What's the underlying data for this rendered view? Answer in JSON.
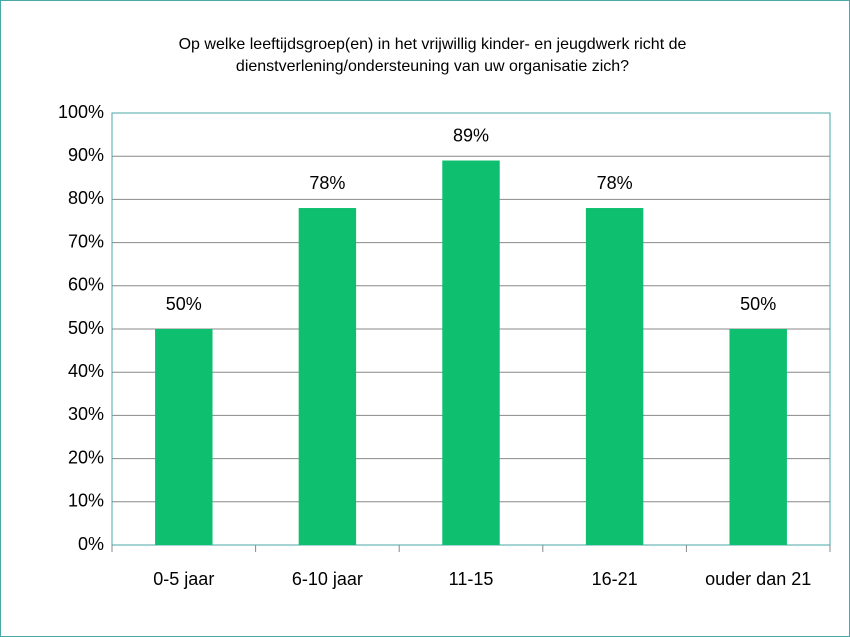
{
  "chart_data": {
    "type": "bar",
    "title": "Op welke leeftijdsgroep(en) in het vrijwillig kinder- en jeugdwerk richt de dienstverlening/ondersteuning van uw organisatie zich?",
    "categories": [
      "0-5 jaar",
      "6-10 jaar",
      "11-15",
      "16-21",
      "ouder dan 21"
    ],
    "values": [
      50,
      78,
      89,
      78,
      50
    ],
    "value_labels": [
      "50%",
      "78%",
      "89%",
      "78%",
      "50%"
    ],
    "color": "#0dbf6e",
    "ylim": [
      0,
      100
    ],
    "yticks": [
      {
        "value": 0,
        "label": "0%"
      },
      {
        "value": 10,
        "label": "10%"
      },
      {
        "value": 20,
        "label": "20%"
      },
      {
        "value": 30,
        "label": "30%"
      },
      {
        "value": 40,
        "label": "40%"
      },
      {
        "value": 50,
        "label": "50%"
      },
      {
        "value": 60,
        "label": "60%"
      },
      {
        "value": 70,
        "label": "70%"
      },
      {
        "value": 80,
        "label": "80%"
      },
      {
        "value": 90,
        "label": "90%"
      },
      {
        "value": 100,
        "label": "100%"
      }
    ],
    "grid": true
  }
}
